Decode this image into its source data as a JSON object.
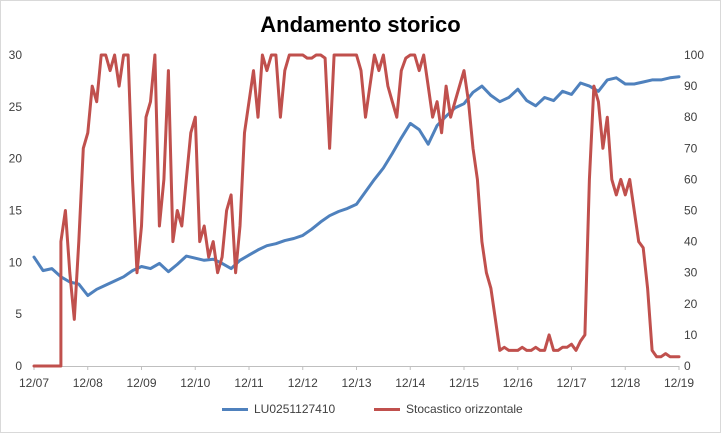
{
  "chart_data": {
    "type": "line",
    "title": "Andamento storico",
    "x_ticks": [
      "12/07",
      "12/08",
      "12/09",
      "12/10",
      "12/11",
      "12/12",
      "12/13",
      "12/14",
      "12/15",
      "12/16",
      "12/17",
      "12/18",
      "12/19"
    ],
    "xlim": [
      "2007-12",
      "2019-12"
    ],
    "y_left": {
      "lim": [
        0,
        30
      ],
      "ticks": [
        "0",
        "5",
        "10",
        "15",
        "20",
        "25",
        "30"
      ]
    },
    "y_right": {
      "lim": [
        0,
        100
      ],
      "ticks": [
        "0",
        "10",
        "20",
        "30",
        "40",
        "50",
        "60",
        "70",
        "80",
        "90",
        "100"
      ]
    },
    "grid": false,
    "legend": "bottom",
    "series": [
      {
        "name": "LU0251127410",
        "axis": "left",
        "color": "#4f81bd",
        "x": [
          "2007-12",
          "2008-02",
          "2008-04",
          "2008-06",
          "2008-08",
          "2008-10",
          "2008-12",
          "2009-02",
          "2009-04",
          "2009-06",
          "2009-08",
          "2009-10",
          "2009-12",
          "2010-02",
          "2010-04",
          "2010-06",
          "2010-08",
          "2010-10",
          "2010-12",
          "2011-02",
          "2011-04",
          "2011-06",
          "2011-08",
          "2011-10",
          "2011-12",
          "2012-02",
          "2012-04",
          "2012-06",
          "2012-08",
          "2012-10",
          "2012-12",
          "2013-02",
          "2013-04",
          "2013-06",
          "2013-08",
          "2013-10",
          "2013-12",
          "2014-02",
          "2014-04",
          "2014-06",
          "2014-08",
          "2014-10",
          "2014-12",
          "2015-02",
          "2015-04",
          "2015-06",
          "2015-08",
          "2015-10",
          "2015-12",
          "2016-02",
          "2016-04",
          "2016-06",
          "2016-08",
          "2016-10",
          "2016-12",
          "2017-02",
          "2017-04",
          "2017-06",
          "2017-08",
          "2017-10",
          "2017-12",
          "2018-02",
          "2018-04",
          "2018-06",
          "2018-08",
          "2018-10",
          "2018-12",
          "2019-02",
          "2019-04",
          "2019-06",
          "2019-08",
          "2019-10",
          "2019-12"
        ],
        "y": [
          10.5,
          9.2,
          9.4,
          8.6,
          8.1,
          7.9,
          6.8,
          7.4,
          7.8,
          8.2,
          8.6,
          9.2,
          9.6,
          9.4,
          9.9,
          9.1,
          9.8,
          10.6,
          10.4,
          10.2,
          10.3,
          9.9,
          9.4,
          10.2,
          10.7,
          11.2,
          11.6,
          11.8,
          12.1,
          12.3,
          12.6,
          13.2,
          13.9,
          14.5,
          14.9,
          15.2,
          15.6,
          16.8,
          18.0,
          19.1,
          20.5,
          22.0,
          23.4,
          22.8,
          21.4,
          23.2,
          24.1,
          24.9,
          25.3,
          26.4,
          27.0,
          26.1,
          25.5,
          25.9,
          26.7,
          25.6,
          25.1,
          25.9,
          25.6,
          26.5,
          26.2,
          27.3,
          27.0,
          26.5,
          27.6,
          27.8,
          27.2,
          27.2,
          27.4,
          27.6,
          27.6,
          27.8,
          27.9
        ]
      },
      {
        "name": "Stocastico orizzontale",
        "axis": "right",
        "color": "#c0504d",
        "x": [
          "2007-12",
          "2008-06",
          "2008-06",
          "2008-07",
          "2008-08",
          "2008-09",
          "2008-10",
          "2008-11",
          "2008-12",
          "2009-01",
          "2009-02",
          "2009-03",
          "2009-04",
          "2009-05",
          "2009-06",
          "2009-07",
          "2009-08",
          "2009-09",
          "2009-10",
          "2009-11",
          "2009-12",
          "2010-01",
          "2010-02",
          "2010-03",
          "2010-04",
          "2010-05",
          "2010-06",
          "2010-07",
          "2010-08",
          "2010-09",
          "2010-10",
          "2010-11",
          "2010-12",
          "2011-01",
          "2011-02",
          "2011-03",
          "2011-04",
          "2011-05",
          "2011-06",
          "2011-07",
          "2011-08",
          "2011-09",
          "2011-10",
          "2011-11",
          "2011-12",
          "2012-01",
          "2012-02",
          "2012-03",
          "2012-04",
          "2012-05",
          "2012-06",
          "2012-07",
          "2012-08",
          "2012-09",
          "2012-10",
          "2012-11",
          "2012-12",
          "2013-01",
          "2013-02",
          "2013-03",
          "2013-04",
          "2013-05",
          "2013-06",
          "2013-07",
          "2013-08",
          "2013-09",
          "2013-10",
          "2013-11",
          "2013-12",
          "2014-01",
          "2014-02",
          "2014-03",
          "2014-04",
          "2014-05",
          "2014-06",
          "2014-07",
          "2014-08",
          "2014-09",
          "2014-10",
          "2014-11",
          "2014-12",
          "2015-01",
          "2015-02",
          "2015-03",
          "2015-04",
          "2015-05",
          "2015-06",
          "2015-07",
          "2015-08",
          "2015-09",
          "2015-10",
          "2015-11",
          "2015-12",
          "2016-01",
          "2016-02",
          "2016-03",
          "2016-04",
          "2016-05",
          "2016-06",
          "2016-07",
          "2016-08",
          "2016-09",
          "2016-10",
          "2016-11",
          "2016-12",
          "2017-01",
          "2017-02",
          "2017-03",
          "2017-04",
          "2017-05",
          "2017-06",
          "2017-07",
          "2017-08",
          "2017-09",
          "2017-10",
          "2017-11",
          "2017-12",
          "2018-01",
          "2018-02",
          "2018-03",
          "2018-04",
          "2018-05",
          "2018-06",
          "2018-07",
          "2018-08",
          "2018-09",
          "2018-10",
          "2018-11",
          "2018-12",
          "2019-01",
          "2019-02",
          "2019-03",
          "2019-04",
          "2019-05",
          "2019-06",
          "2019-07",
          "2019-08",
          "2019-09",
          "2019-10",
          "2019-11",
          "2019-12"
        ],
        "y": [
          0,
          0,
          40,
          50,
          30,
          15,
          40,
          70,
          75,
          90,
          85,
          100,
          100,
          95,
          100,
          90,
          100,
          100,
          60,
          30,
          45,
          80,
          85,
          100,
          45,
          60,
          95,
          40,
          50,
          45,
          60,
          75,
          80,
          40,
          45,
          35,
          40,
          30,
          35,
          50,
          55,
          30,
          45,
          75,
          85,
          95,
          80,
          100,
          95,
          100,
          100,
          80,
          95,
          100,
          100,
          100,
          100,
          99,
          99,
          100,
          100,
          99,
          70,
          100,
          100,
          100,
          100,
          100,
          100,
          95,
          80,
          90,
          100,
          95,
          100,
          90,
          85,
          80,
          95,
          99,
          100,
          100,
          95,
          100,
          90,
          80,
          85,
          75,
          90,
          80,
          85,
          90,
          95,
          85,
          70,
          60,
          40,
          30,
          25,
          15,
          5,
          6,
          5,
          5,
          5,
          6,
          5,
          5,
          6,
          5,
          5,
          10,
          5,
          5,
          6,
          6,
          7,
          5,
          8,
          10,
          60,
          90,
          85,
          70,
          80,
          60,
          55,
          60,
          55,
          60,
          50,
          40,
          38,
          25,
          5,
          3,
          3,
          4,
          3,
          3,
          3
        ]
      }
    ]
  }
}
